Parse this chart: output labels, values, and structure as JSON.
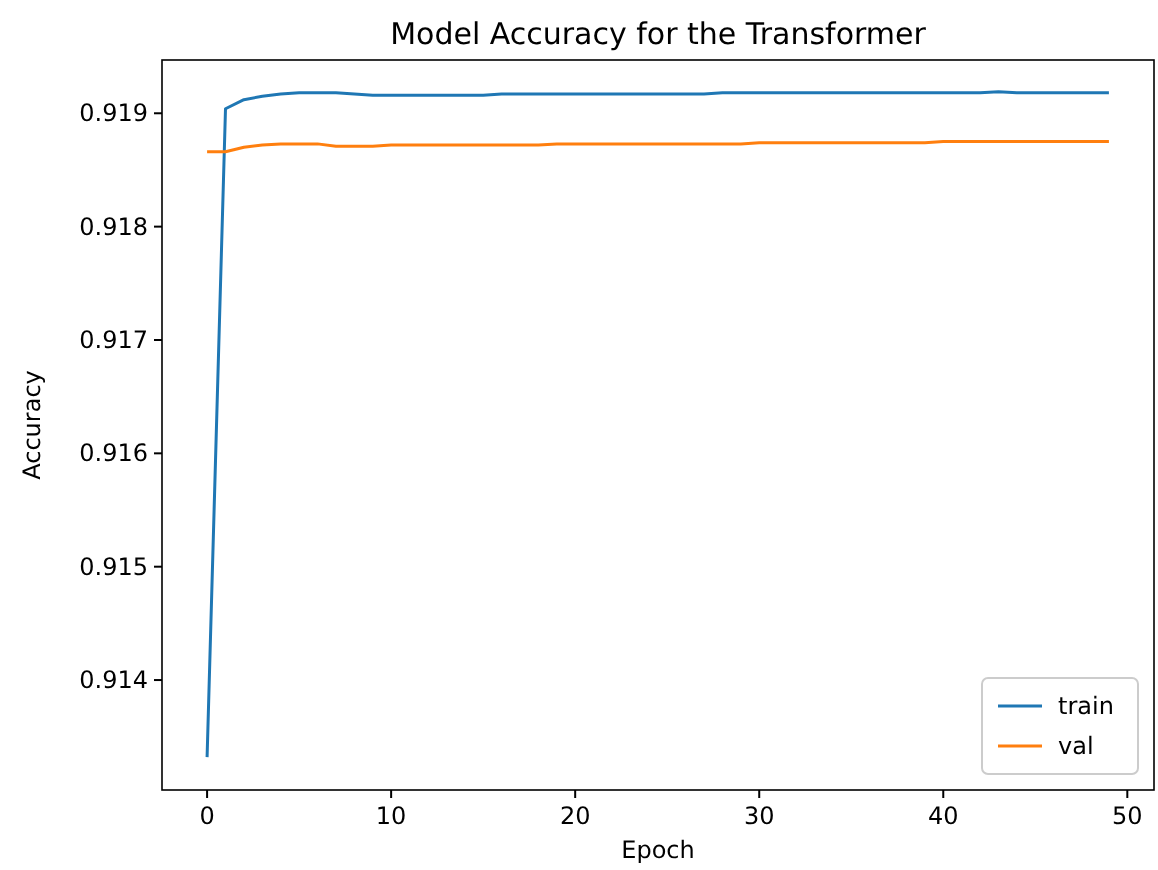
{
  "chart_data": {
    "type": "line",
    "title": "Model Accuracy for the Transformer",
    "xlabel": "Epoch",
    "ylabel": "Accuracy",
    "x": [
      0,
      1,
      2,
      3,
      4,
      5,
      6,
      7,
      8,
      9,
      10,
      11,
      12,
      13,
      14,
      15,
      16,
      17,
      18,
      19,
      20,
      21,
      22,
      23,
      24,
      25,
      26,
      27,
      28,
      29,
      30,
      31,
      32,
      33,
      34,
      35,
      36,
      37,
      38,
      39,
      40,
      41,
      42,
      43,
      44,
      45,
      46,
      47,
      48,
      49
    ],
    "series": [
      {
        "name": "train",
        "color": "#1f77b4",
        "values": [
          0.91332,
          0.91904,
          0.91912,
          0.91915,
          0.91917,
          0.91918,
          0.91918,
          0.91918,
          0.91917,
          0.91916,
          0.91916,
          0.91916,
          0.91916,
          0.91916,
          0.91916,
          0.91916,
          0.91917,
          0.91917,
          0.91917,
          0.91917,
          0.91917,
          0.91917,
          0.91917,
          0.91917,
          0.91917,
          0.91917,
          0.91917,
          0.91917,
          0.91918,
          0.91918,
          0.91918,
          0.91918,
          0.91918,
          0.91918,
          0.91918,
          0.91918,
          0.91918,
          0.91918,
          0.91918,
          0.91918,
          0.91918,
          0.91918,
          0.91918,
          0.91919,
          0.91918,
          0.91918,
          0.91918,
          0.91918,
          0.91918,
          0.91918
        ]
      },
      {
        "name": "val",
        "color": "#ff7f0e",
        "values": [
          0.91866,
          0.91866,
          0.9187,
          0.91872,
          0.91873,
          0.91873,
          0.91873,
          0.91871,
          0.91871,
          0.91871,
          0.91872,
          0.91872,
          0.91872,
          0.91872,
          0.91872,
          0.91872,
          0.91872,
          0.91872,
          0.91872,
          0.91873,
          0.91873,
          0.91873,
          0.91873,
          0.91873,
          0.91873,
          0.91873,
          0.91873,
          0.91873,
          0.91873,
          0.91873,
          0.91874,
          0.91874,
          0.91874,
          0.91874,
          0.91874,
          0.91874,
          0.91874,
          0.91874,
          0.91874,
          0.91874,
          0.91875,
          0.91875,
          0.91875,
          0.91875,
          0.91875,
          0.91875,
          0.91875,
          0.91875,
          0.91875,
          0.91875
        ]
      }
    ],
    "xlim": [
      -2.45,
      51.45
    ],
    "ylim": [
      0.91303,
      0.91947
    ],
    "xticks": [
      0,
      10,
      20,
      30,
      40,
      50
    ],
    "yticks": [
      0.914,
      0.915,
      0.916,
      0.917,
      0.918,
      0.919
    ],
    "legend": "bottom right",
    "grid": false,
    "marker": "none",
    "line_style": "solid"
  }
}
